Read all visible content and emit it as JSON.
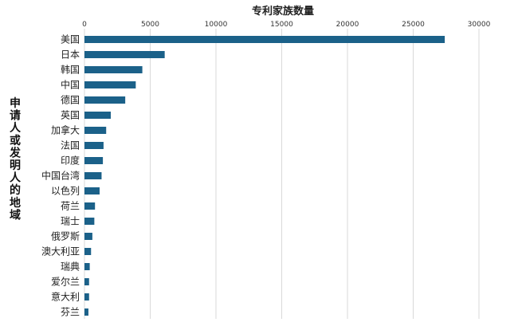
{
  "chart_data": {
    "type": "bar",
    "orientation": "horizontal",
    "xlabel": "专利家族数量",
    "ylabel": "申请人或发明人的地域",
    "xlim": [
      0,
      30000
    ],
    "xticks": [
      0,
      5000,
      10000,
      15000,
      20000,
      25000,
      30000
    ],
    "x_axis_position": "top",
    "grid": true,
    "bar_color": "#1b6189",
    "categories": [
      "美国",
      "日本",
      "韩国",
      "中国",
      "德国",
      "英国",
      "加拿大",
      "法国",
      "印度",
      "中国台湾",
      "以色列",
      "荷兰",
      "瑞士",
      "俄罗斯",
      "澳大利亚",
      "瑞典",
      "爱尔兰",
      "意大利",
      "芬兰"
    ],
    "values": [
      27400,
      6100,
      4400,
      3900,
      3100,
      2000,
      1650,
      1450,
      1400,
      1300,
      1150,
      800,
      750,
      600,
      500,
      400,
      350,
      350,
      300
    ]
  }
}
